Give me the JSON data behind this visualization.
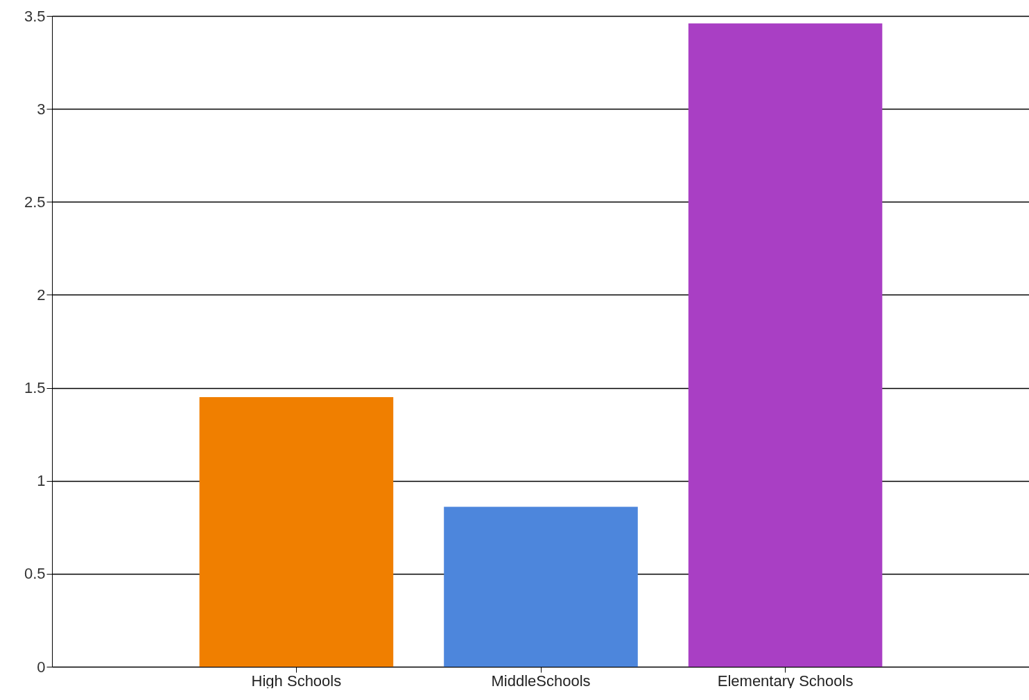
{
  "chart_data": {
    "type": "bar",
    "categories": [
      "High Schools",
      "MiddleSchools",
      "Elementary Schools"
    ],
    "values": [
      1.45,
      0.86,
      3.46
    ],
    "colors": [
      "#f07f00",
      "#4d86dc",
      "#a93fc4"
    ],
    "ylim": [
      0,
      3.5
    ],
    "yticks": [
      0,
      0.5,
      1,
      1.5,
      2,
      2.5,
      3,
      3.5
    ],
    "grid": "y",
    "legend": false
  }
}
